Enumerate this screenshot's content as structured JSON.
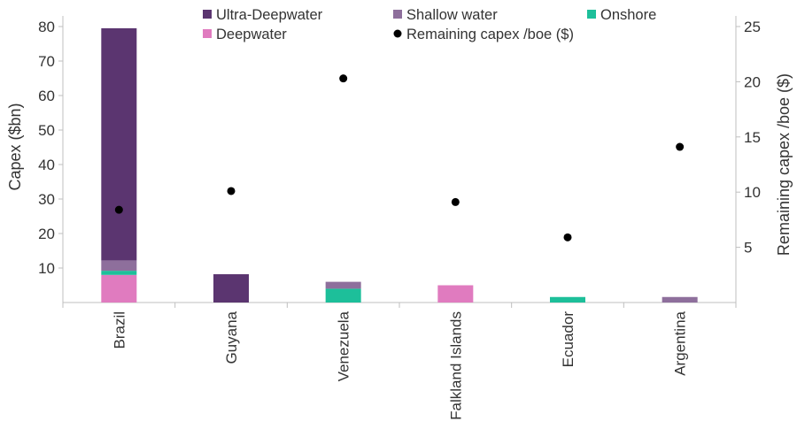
{
  "chart_data": {
    "type": "bar",
    "stacked": true,
    "categories": [
      "Brazil",
      "Guyana",
      "Venezuela",
      "Falkland Islands",
      "Ecuador",
      "Argentina"
    ],
    "series": [
      {
        "name": "Deepwater",
        "color": "#e07bbf",
        "values": [
          8,
          0,
          0,
          5,
          0,
          0
        ]
      },
      {
        "name": "Onshore",
        "color": "#1dbf9a",
        "values": [
          1.2,
          0,
          4,
          0,
          1.6,
          0
        ]
      },
      {
        "name": "Shallow water",
        "color": "#8e6f9c",
        "values": [
          3,
          0,
          2,
          0,
          0,
          1.6
        ]
      },
      {
        "name": "Ultra-Deepwater",
        "color": "#5b3570",
        "values": [
          67.3,
          8.2,
          0,
          0,
          0,
          0
        ]
      }
    ],
    "secondary_series": {
      "name": "Remaining capex /boe ($)",
      "type": "scatter",
      "color": "#000000",
      "values": [
        8.4,
        10.1,
        20.3,
        9.1,
        5.9,
        14.1
      ]
    },
    "ylabel": "Capex ($bn)",
    "ylim": [
      0,
      80
    ],
    "yticks": [
      10,
      20,
      30,
      40,
      50,
      60,
      70,
      80
    ],
    "y2label": "Remaining capex /boe ($)",
    "y2lim": [
      0,
      25
    ],
    "y2ticks": [
      5,
      10,
      15,
      20,
      25
    ],
    "legend": {
      "placement": "top",
      "order": [
        "Ultra-Deepwater",
        "Shallow water",
        "Onshore",
        "Deepwater",
        "Remaining capex /boe ($)"
      ]
    },
    "grid": false
  }
}
